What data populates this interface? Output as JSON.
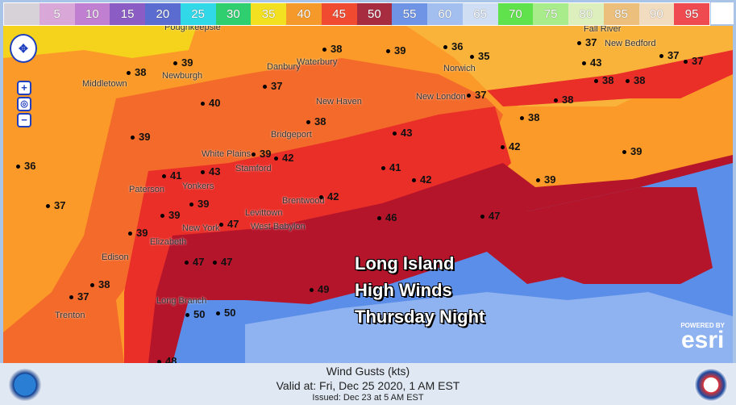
{
  "legend": {
    "labels": [
      "",
      "5",
      "10",
      "15",
      "20",
      "25",
      "30",
      "35",
      "40",
      "45",
      "50",
      "55",
      "60",
      "65",
      "70",
      "75",
      "80",
      "85",
      "90",
      "95"
    ],
    "colors": [
      "#d6d2d8",
      "#d9a8d8",
      "#c07fd0",
      "#8a5cc4",
      "#5a6ccf",
      "#30d8e8",
      "#2fcf70",
      "#f3e020",
      "#f59a2a",
      "#f04a30",
      "#a82c40",
      "#6f94e6",
      "#a3bff0",
      "#d0def4",
      "#5fe24c",
      "#a8ec8c",
      "#dcefbc",
      "#ecc07c",
      "#f2dcc0",
      "#ee4a50"
    ]
  },
  "map": {
    "zone_colors": {
      "orange": "#fb9a28",
      "light_orange": "#f9b33a",
      "red_orange": "#f36a2a",
      "red": "#ea2e28",
      "dark_red": "#b5152a",
      "blue": "#5b8ee8",
      "light_blue": "#8fb2f0",
      "yellow": "#f5d21c"
    },
    "points": [
      "36",
      "39",
      "38",
      "39",
      "40",
      "37",
      "41",
      "43",
      "39",
      "39",
      "39",
      "39",
      "42",
      "37",
      "38",
      "39",
      "38",
      "36",
      "35",
      "37",
      "37",
      "43",
      "38",
      "38",
      "37",
      "37",
      "38",
      "38",
      "42",
      "39",
      "39",
      "43",
      "41",
      "42",
      "42",
      "46",
      "47",
      "47",
      "47",
      "47",
      "38",
      "37",
      "49",
      "50",
      "50",
      "48"
    ],
    "places": [
      "Poughkeepsie",
      "Newburgh",
      "Middletown",
      "Waterbury",
      "Norwich",
      "New London",
      "Fall River",
      "New Bedford",
      "Danbury",
      "New Haven",
      "Bridgeport",
      "White Plains",
      "Stamford",
      "Paterson",
      "Yonkers",
      "New York",
      "Elizabeth",
      "Levittown",
      "West Babylon",
      "Brentwood",
      "Edison",
      "Trenton",
      "Long Branch"
    ],
    "headline": [
      "Long Island",
      "High Winds",
      "Thursday Night"
    ],
    "attribution": {
      "powered": "POWERED BY",
      "brand": "esri"
    }
  },
  "footer": {
    "title": "Wind Gusts (kts)",
    "valid": "Valid at: Fri, Dec 25 2020,   1 AM EST",
    "issued": "Issued: Dec 23 at 5 AM EST",
    "left_logo": "NOAA",
    "right_logo": "National Weather Service"
  }
}
